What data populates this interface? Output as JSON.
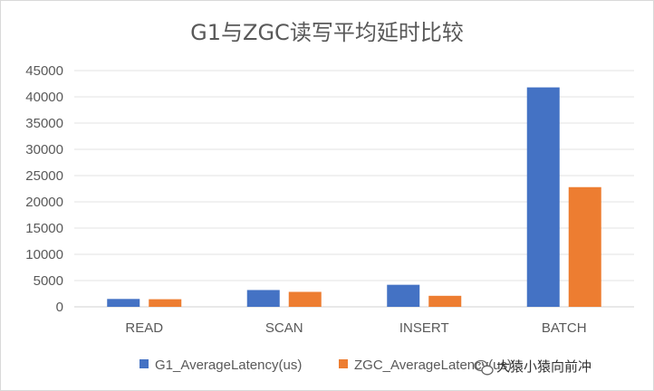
{
  "chart_data": {
    "type": "bar",
    "title": "G1与ZGC读写平均延时比较",
    "categories": [
      "READ",
      "SCAN",
      "INSERT",
      "BATCH"
    ],
    "series": [
      {
        "name": "G1_AverageLatency(us)",
        "color": "#4472C4",
        "values": [
          1500,
          3200,
          4200,
          41800
        ]
      },
      {
        "name": "ZGC_AverageLatency(us)",
        "color": "#ED7D31",
        "values": [
          1450,
          2850,
          2100,
          22800
        ]
      }
    ],
    "ylim": [
      0,
      45000
    ],
    "yticks": [
      0,
      5000,
      10000,
      15000,
      20000,
      25000,
      30000,
      35000,
      40000,
      45000
    ],
    "grid": true,
    "legend_position": "bottom"
  },
  "watermark": {
    "text": "大猿小猿向前冲",
    "icon": "wechat-icon"
  }
}
